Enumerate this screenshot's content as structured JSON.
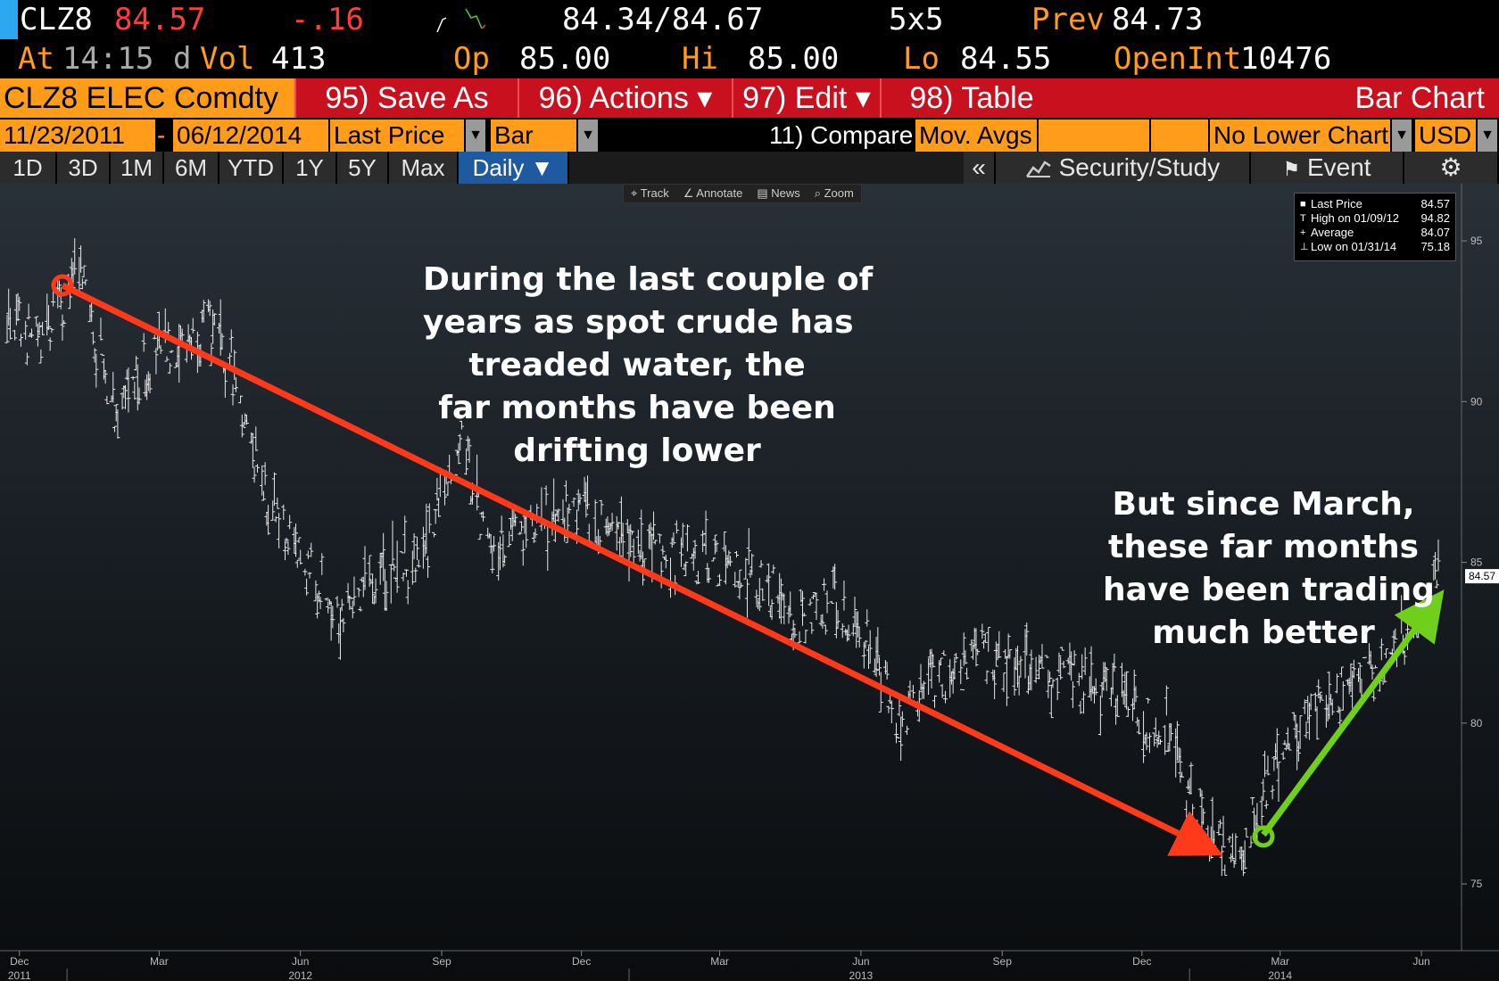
{
  "quote": {
    "ticker": "CLZ8",
    "last": "84.57",
    "change": "-.16",
    "bid_ask": "84.34/84.67",
    "size": "5x5",
    "prev_label": "Prev",
    "prev": "84.73",
    "at_label": "At",
    "time": "14:15",
    "d_label": "d",
    "vol_label": "Vol",
    "vol": "413",
    "op_label": "Op",
    "op": "85.00",
    "hi_label": "Hi",
    "hi": "85.00",
    "lo_label": "Lo",
    "lo": "84.55",
    "oi_label": "OpenInt",
    "oi": "10476"
  },
  "function_bar": {
    "security": "CLZ8 ELEC Comdty",
    "save_as": "95) Save As",
    "actions": "96) Actions ▾",
    "edit": "97) Edit ▾",
    "table": "98) Table",
    "chart_type": "Bar Chart"
  },
  "params": {
    "start_date": "11/23/2011",
    "dash": "-",
    "end_date": "06/12/2014",
    "field": "Last Price",
    "style": "Bar",
    "compare": "11) Compare",
    "mov_avgs": "Mov. Avgs",
    "lower_chart": "No Lower Chart",
    "currency": "USD"
  },
  "ranges": {
    "items": [
      "1D",
      "3D",
      "1M",
      "6M",
      "YTD",
      "1Y",
      "5Y",
      "Max"
    ],
    "period": "Daily ▼",
    "collapse": "«",
    "security_study": "Security/Study",
    "event": "Event",
    "settings_glyph": "⚙"
  },
  "chart_tools": [
    "⌖ Track",
    "∠ Annotate",
    "▤ News",
    "⌕ Zoom"
  ],
  "legend": [
    {
      "mark": "■",
      "label": "Last Price",
      "value": "84.57"
    },
    {
      "mark": "T",
      "label": "High on 01/09/12",
      "value": "94.82"
    },
    {
      "mark": "+",
      "label": "Average",
      "value": "84.07"
    },
    {
      "mark": "⊥",
      "label": "Low on 01/31/14",
      "value": "75.18"
    }
  ],
  "annotations": {
    "left": [
      "During the last couple of",
      "years as spot crude has",
      "treaded water, the",
      "far months have been",
      "drifting lower"
    ],
    "right": [
      "But since March,",
      "these far months",
      "have been trading",
      "much better"
    ]
  },
  "chart_data": {
    "type": "bar",
    "x_range": [
      "2011-11-23",
      "2014-06-12"
    ],
    "ylim": [
      73.2,
      96.5
    ],
    "y_ticks": [
      "95",
      "90",
      "85",
      "80",
      "75"
    ],
    "last_price_label": "84.57",
    "x_month_ticks": [
      "Dec",
      "Mar",
      "Jun",
      "Sep",
      "Dec",
      "Mar",
      "Jun",
      "Sep",
      "Dec",
      "Mar",
      "Jun"
    ],
    "x_year_ticks": [
      "2011",
      "2012",
      "2013",
      "2014"
    ],
    "series": [
      {
        "values": [
          {
            "date": "2011-11-23",
            "value": 92.5
          },
          {
            "date": "2011-12-15",
            "value": 91.8
          },
          {
            "date": "2012-01-09",
            "value": 94.0
          },
          {
            "date": "2012-02-01",
            "value": 89.8
          },
          {
            "date": "2012-03-01",
            "value": 91.5
          },
          {
            "date": "2012-04-01",
            "value": 92.4
          },
          {
            "date": "2012-04-20",
            "value": 90.6
          },
          {
            "date": "2012-05-10",
            "value": 87.0
          },
          {
            "date": "2012-06-01",
            "value": 85.0
          },
          {
            "date": "2012-06-27",
            "value": 83.6
          },
          {
            "date": "2012-07-20",
            "value": 84.6
          },
          {
            "date": "2012-08-20",
            "value": 85.2
          },
          {
            "date": "2012-09-14",
            "value": 89.0
          },
          {
            "date": "2012-10-01",
            "value": 85.3
          },
          {
            "date": "2012-10-25",
            "value": 85.8
          },
          {
            "date": "2012-11-20",
            "value": 86.6
          },
          {
            "date": "2012-12-15",
            "value": 86.3
          },
          {
            "date": "2013-01-25",
            "value": 85.3
          },
          {
            "date": "2013-03-01",
            "value": 85.0
          },
          {
            "date": "2013-04-01",
            "value": 84.3
          },
          {
            "date": "2013-04-17",
            "value": 82.9
          },
          {
            "date": "2013-05-15",
            "value": 83.8
          },
          {
            "date": "2013-06-05",
            "value": 82.6
          },
          {
            "date": "2013-06-25",
            "value": 79.8
          },
          {
            "date": "2013-07-20",
            "value": 81.5
          },
          {
            "date": "2013-08-25",
            "value": 82.0
          },
          {
            "date": "2013-10-01",
            "value": 81.7
          },
          {
            "date": "2013-10-25",
            "value": 81.2
          },
          {
            "date": "2013-11-20",
            "value": 80.8
          },
          {
            "date": "2013-12-20",
            "value": 79.5
          },
          {
            "date": "2014-01-05",
            "value": 77.2
          },
          {
            "date": "2014-01-31",
            "value": 75.6
          },
          {
            "date": "2014-02-20",
            "value": 78.0
          },
          {
            "date": "2014-03-20",
            "value": 80.2
          },
          {
            "date": "2014-04-15",
            "value": 81.0
          },
          {
            "date": "2014-05-10",
            "value": 81.8
          },
          {
            "date": "2014-05-28",
            "value": 83.2
          },
          {
            "date": "2014-06-12",
            "value": 84.57
          }
        ]
      }
    ]
  },
  "colors": {
    "orange": "#ff9c1a",
    "red_bar": "#c8101e",
    "down_arrow": "#ff3a1a",
    "up_arrow": "#6fcf1a"
  }
}
